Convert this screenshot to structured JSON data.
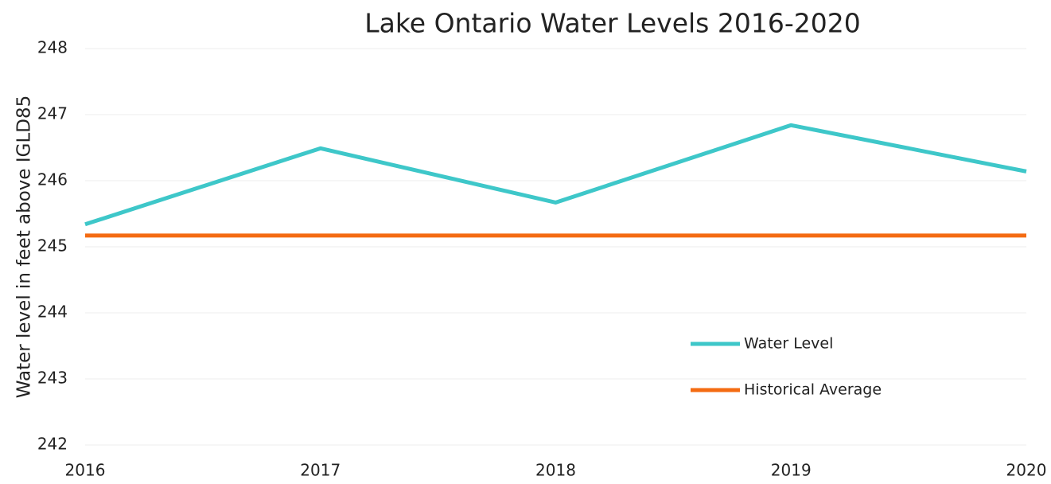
{
  "chart_data": {
    "type": "line",
    "title": "Lake Ontario Water Levels 2016-2020",
    "y_label": "Water level in feet above IGLD85",
    "x": [
      2016,
      2017,
      2018,
      2019,
      2020
    ],
    "xlim": [
      2016,
      2020
    ],
    "xticks": [
      2016,
      2017,
      2018,
      2019,
      2020
    ],
    "ylim": [
      242,
      248
    ],
    "yticks": [
      242,
      243,
      244,
      245,
      246,
      247,
      248
    ],
    "grid": true,
    "legend": "lower right",
    "series": [
      {
        "name": "Water Level",
        "color": "#3ec7c9",
        "values": [
          245.34,
          246.49,
          245.67,
          246.84,
          246.14
        ]
      },
      {
        "name": "Historical Average",
        "color": "#f46b12",
        "values": [
          245.17,
          245.17,
          245.17,
          245.17,
          245.17
        ]
      }
    ]
  }
}
